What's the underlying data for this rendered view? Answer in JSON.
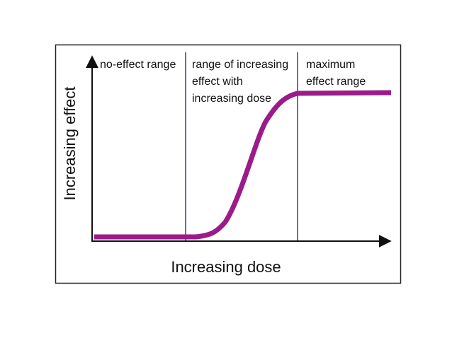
{
  "diagram": {
    "x_axis_label": "Increasing dose",
    "y_axis_label": "Increasing effect",
    "regions": [
      {
        "lines": [
          "no-effect range"
        ]
      },
      {
        "lines": [
          "range of increasing",
          "effect with",
          "increasing dose"
        ]
      },
      {
        "lines": [
          "maximum",
          "effect range"
        ]
      }
    ],
    "colors": {
      "curve": "#9b1b8b",
      "divider": "#2b2b8a",
      "axis": "#111111",
      "frame": "#222222"
    }
  }
}
